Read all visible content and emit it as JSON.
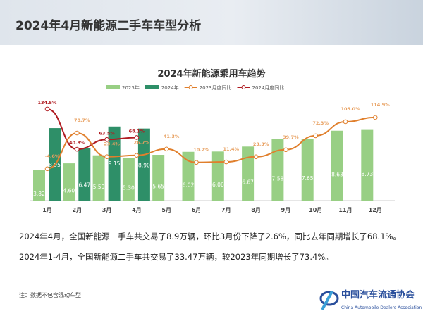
{
  "header": {
    "title": "2024年4月新能源二手车车型分析"
  },
  "chart_data": {
    "type": "bar",
    "title": "2024年新能源乘用车趋势",
    "categories": [
      "1月",
      "2月",
      "3月",
      "4月",
      "5月",
      "6月",
      "7月",
      "8月",
      "9月",
      "10月",
      "11月",
      "12月"
    ],
    "series": [
      {
        "name": "2023年",
        "kind": "bar",
        "color": "#98cf84",
        "values": [
          3.82,
          4.6,
          5.59,
          5.3,
          5.65,
          6.02,
          6.06,
          6.67,
          7.58,
          7.65,
          8.63,
          8.73
        ]
      },
      {
        "name": "2024年",
        "kind": "bar",
        "color": "#2e8f68",
        "values": [
          8.95,
          6.47,
          9.15,
          8.9,
          null,
          null,
          null,
          null,
          null,
          null,
          null,
          null
        ]
      },
      {
        "name": "2023月度同比",
        "kind": "line",
        "color": "#e07f2c",
        "values": [
          -4.6,
          78.7,
          23.4,
          26.7,
          41.3,
          10.2,
          11.4,
          23.3,
          39.7,
          72.3,
          105.0,
          114.9
        ],
        "labels": [
          "-4.6%",
          "78.7%",
          "23.4%",
          "26.7%",
          "41.3%",
          "10.2%",
          "11.4%",
          "23.3%",
          "39.7%",
          "72.3%",
          "105.0%",
          "114.9%"
        ]
      },
      {
        "name": "2024月度同比",
        "kind": "line",
        "color": "#b01c22",
        "values": [
          134.5,
          40.8,
          63.5,
          68.1,
          null,
          null,
          null,
          null,
          null,
          null,
          null,
          null
        ],
        "labels": [
          "134.5%",
          "40.8%",
          "63.5%",
          "68.1%"
        ]
      }
    ],
    "legend_position": "top",
    "grid": false
  },
  "text": {
    "para1": "2024年4月，全国新能源二手车共交易了8.9万辆，环比3月份下降了2.6%，同比去年同期增长了68.1%。",
    "para2": "2024年1-4月，全国新能源二手车共交易了33.47万辆，较2023年同期增长了73.4%。",
    "note": "注：数据不包含混动车型"
  },
  "logo": {
    "cn": "中国汽车流通协会",
    "en": "China Automobile Dealers Association",
    "mark": "CADA"
  }
}
